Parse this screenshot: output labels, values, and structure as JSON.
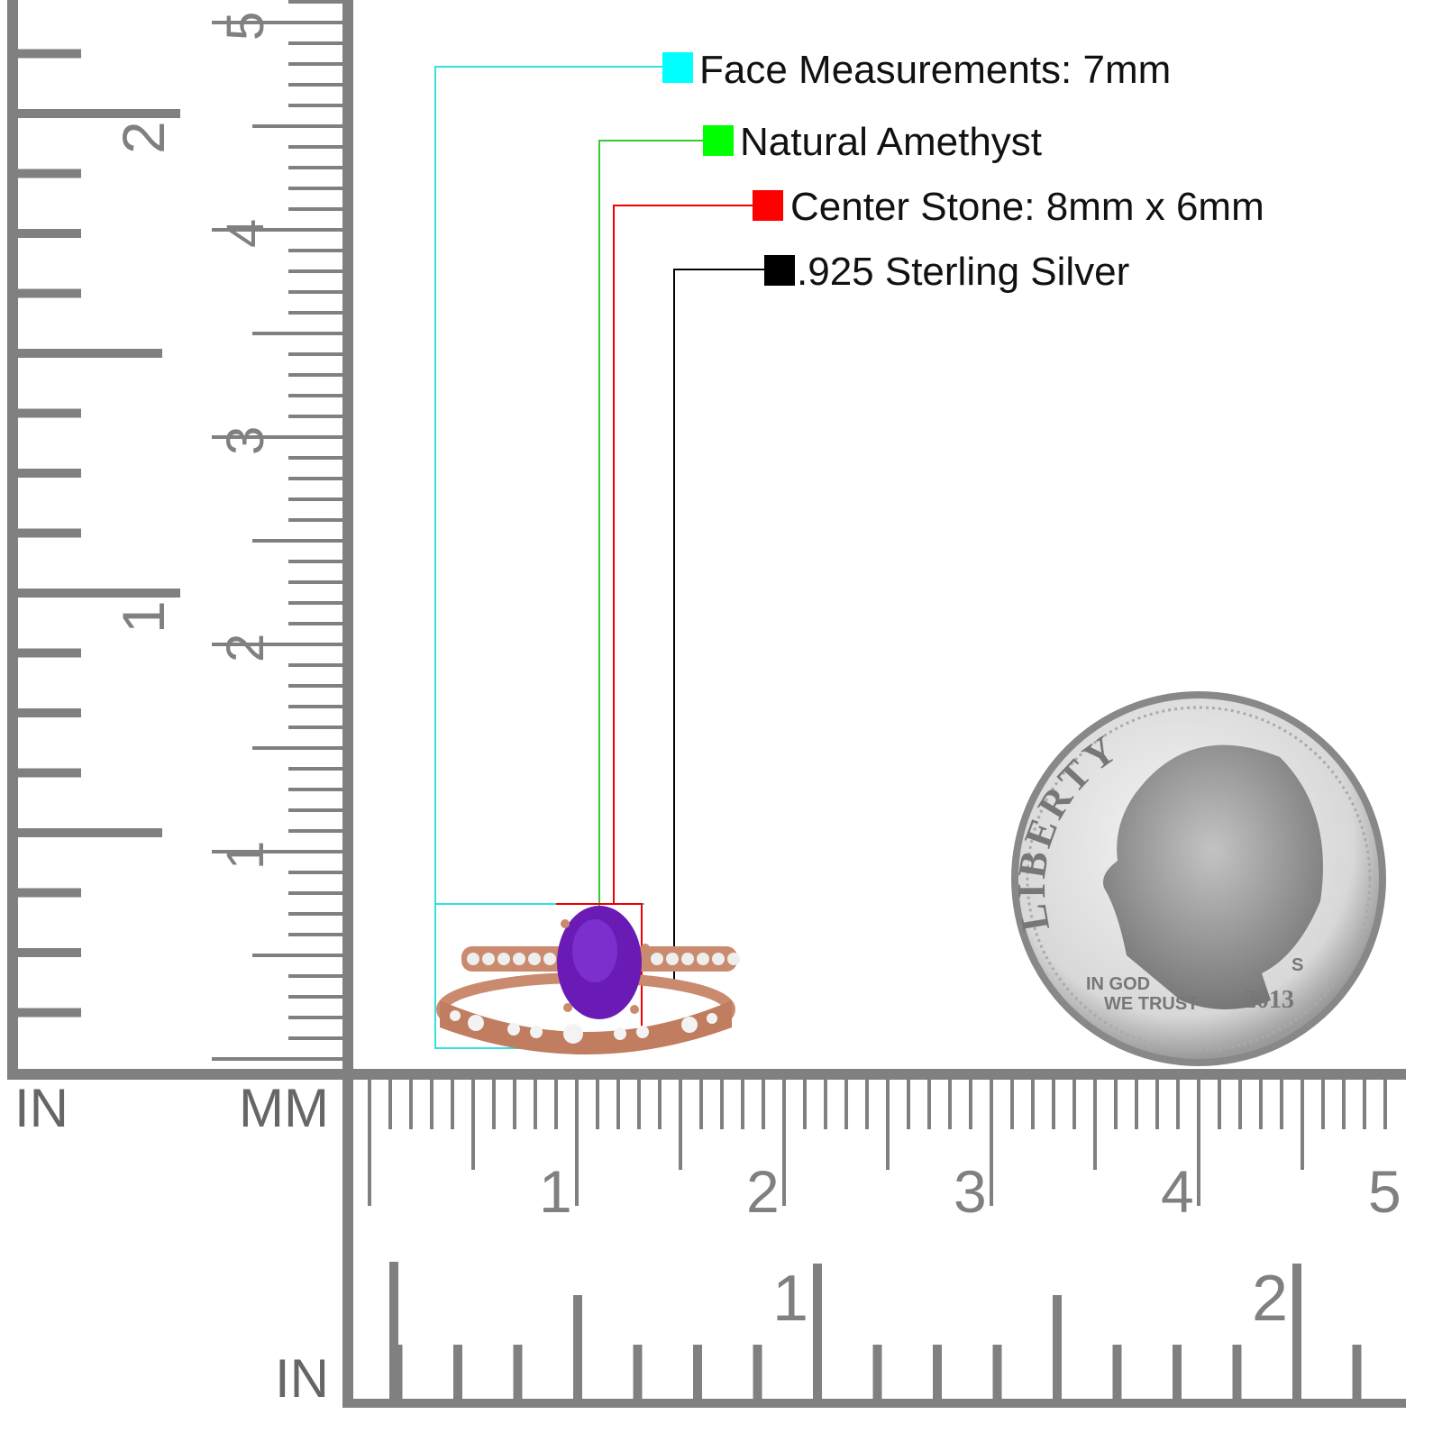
{
  "labels": [
    {
      "text": "Face Measurements: 7mm",
      "color": "#00ffff"
    },
    {
      "text": "Natural Amethyst",
      "color": "#00ff00"
    },
    {
      "text": "Center Stone: 8mm x 6mm",
      "color": "#ff0000"
    },
    {
      "text": ".925 Sterling Silver",
      "color": "#000000"
    }
  ],
  "ruler": {
    "left_unit_in": "IN",
    "left_unit_mm": "MM",
    "bottom_unit_in": "IN",
    "mm_labels": [
      "1",
      "2",
      "3",
      "4",
      "5"
    ],
    "in_labels": [
      "1",
      "2"
    ],
    "color": "#808080"
  },
  "coin": {
    "legend": "LIBERTY",
    "motto_1": "IN GOD",
    "motto_2": "WE TRUST",
    "year": "2013",
    "mint": "S"
  },
  "ring": {
    "stone_color": "#6a1bb5",
    "metal_color": "#c98a6e"
  }
}
